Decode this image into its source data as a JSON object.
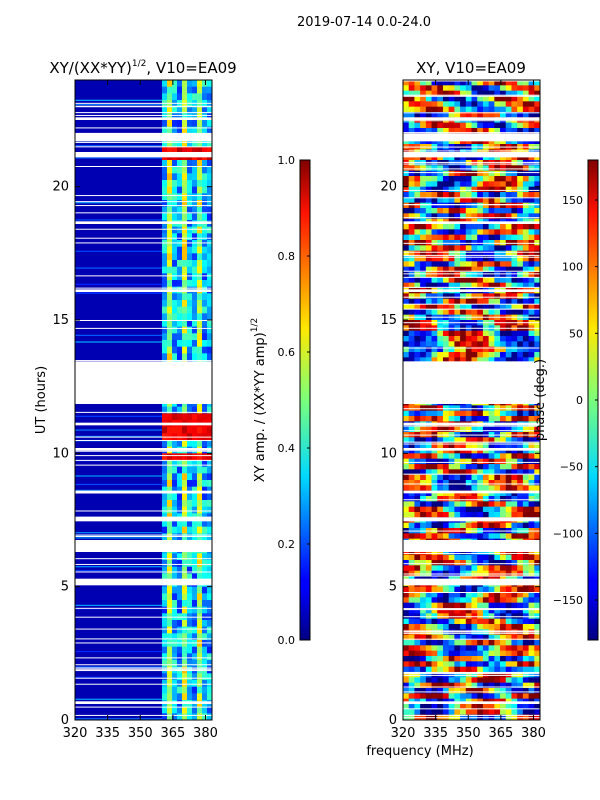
{
  "suptitle": "2019-07-14 0.0-24.0",
  "colors": {
    "background": "#ffffff",
    "no_data": "#ffffff",
    "frame": "#000000"
  },
  "shared": {
    "xlabel": "frequency (MHz)",
    "ylabel": "UT (hours)"
  },
  "chart_data": [
    {
      "type": "heatmap",
      "title_main": "XY/(XX*YY)",
      "title_sup": "1/2",
      "title_rest": ", V10=EA09",
      "xlabel": "",
      "ylabel": "UT (hours)",
      "xlim": [
        320,
        383
      ],
      "ylim": [
        0,
        24
      ],
      "xticks": [
        320,
        335,
        350,
        365,
        380
      ],
      "yticks": [
        0,
        5,
        10,
        15,
        20
      ],
      "colormap": "jet",
      "colorbar": {
        "label_main": "XY amp. / (XX*YY amp)",
        "label_sup": "1/2",
        "vmin": 0.0,
        "vmax": 1.0,
        "ticks": [
          "0.0",
          "0.2",
          "0.4",
          "0.6",
          "0.8",
          "1.0"
        ]
      },
      "description_values": {
        "background_level": 0.05,
        "active_band_mhz": [
          360,
          383
        ],
        "active_band_level": 0.4,
        "hot_rows_ut": [
          9.9,
          10.6,
          10.9,
          11.3,
          21.3
        ]
      },
      "data_gaps_ut": [
        [
          11.85,
          13.45
        ],
        [
          6.3,
          6.75
        ],
        [
          5.05,
          5.3
        ],
        [
          21.1,
          21.3
        ],
        [
          21.7,
          22.0
        ],
        [
          0.6,
          0.7
        ],
        [
          7.45,
          7.6
        ],
        [
          8.5,
          8.6
        ],
        [
          10.1,
          10.2
        ],
        [
          11.05,
          11.15
        ],
        [
          16.05,
          16.15
        ],
        [
          18.6,
          18.7
        ],
        [
          22.5,
          22.6
        ]
      ]
    },
    {
      "type": "heatmap",
      "title_main": "XY, V10=EA09",
      "xlabel": "frequency (MHz)",
      "ylabel": "",
      "xlim": [
        320,
        383
      ],
      "ylim": [
        0,
        24
      ],
      "xticks": [
        320,
        335,
        350,
        365,
        380
      ],
      "yticks": [
        0,
        5,
        10,
        15,
        20
      ],
      "colormap": "jet",
      "colorbar": {
        "label_main": "phase (deg.)",
        "vmin": -180,
        "vmax": 180,
        "ticks": [
          "−150",
          "−100",
          "−50",
          "0",
          "50",
          "100",
          "150"
        ]
      },
      "data_gaps_ut": [
        [
          11.85,
          13.45
        ],
        [
          6.3,
          6.75
        ],
        [
          5.05,
          5.3
        ],
        [
          21.1,
          21.3
        ],
        [
          21.7,
          22.0
        ],
        [
          0.6,
          0.7
        ],
        [
          7.45,
          7.6
        ],
        [
          8.5,
          8.6
        ],
        [
          10.1,
          10.2
        ],
        [
          11.05,
          11.15
        ],
        [
          16.05,
          16.15
        ],
        [
          18.6,
          18.7
        ],
        [
          22.5,
          22.6
        ]
      ]
    }
  ]
}
